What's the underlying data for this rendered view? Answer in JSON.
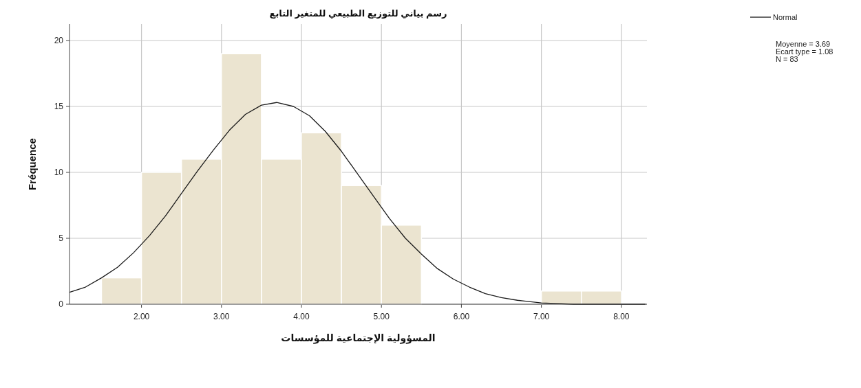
{
  "chart_data": {
    "type": "histogram",
    "title": "رسم بياني للتوزيع الطبيعي للمتغير التابع",
    "xlabel": "المسؤولية الإجتماعية للمؤسسات",
    "ylabel": "Fréquence",
    "bins": [
      1.5,
      2.0,
      2.5,
      3.0,
      3.5,
      4.0,
      4.5,
      5.0,
      5.5,
      6.0,
      6.5,
      7.0,
      7.5,
      8.0
    ],
    "values": [
      2,
      10,
      11,
      19,
      11,
      13,
      9,
      6,
      0,
      0,
      0,
      1,
      1
    ],
    "color": "#ebe4d0",
    "series": [
      {
        "name": "Normal",
        "type": "line",
        "color": "#1a1a1a",
        "x": [
          1.1,
          1.3,
          1.5,
          1.7,
          1.9,
          2.1,
          2.3,
          2.5,
          2.7,
          2.9,
          3.1,
          3.3,
          3.5,
          3.69,
          3.9,
          4.1,
          4.3,
          4.5,
          4.7,
          4.9,
          5.1,
          5.3,
          5.5,
          5.7,
          5.9,
          6.1,
          6.3,
          6.5,
          6.7,
          7.0,
          7.4,
          7.8,
          8.3
        ],
        "values": [
          0.9,
          1.3,
          2.0,
          2.8,
          3.9,
          5.2,
          6.7,
          8.4,
          10.1,
          11.7,
          13.2,
          14.4,
          15.1,
          15.3,
          15.0,
          14.3,
          13.1,
          11.6,
          9.9,
          8.2,
          6.5,
          5.0,
          3.8,
          2.7,
          1.9,
          1.3,
          0.8,
          0.5,
          0.3,
          0.1,
          0.0,
          0.0,
          0.0
        ]
      }
    ],
    "xlim": [
      1.1,
      8.32
    ],
    "ylim": [
      0,
      21.25
    ],
    "xticks": [
      {
        "value": 2,
        "label": "2.00"
      },
      {
        "value": 3,
        "label": "3.00"
      },
      {
        "value": 4,
        "label": "4.00"
      },
      {
        "value": 5,
        "label": "5.00"
      },
      {
        "value": 6,
        "label": "6.00"
      },
      {
        "value": 7,
        "label": "7.00"
      },
      {
        "value": 8,
        "label": "8.00"
      }
    ],
    "yticks": [
      0,
      5,
      10,
      15,
      20
    ],
    "grid": true,
    "legend": "top right",
    "annotations": [
      "Moyenne = 3.69",
      "Ecart type = 1.08",
      "N = 83"
    ]
  }
}
